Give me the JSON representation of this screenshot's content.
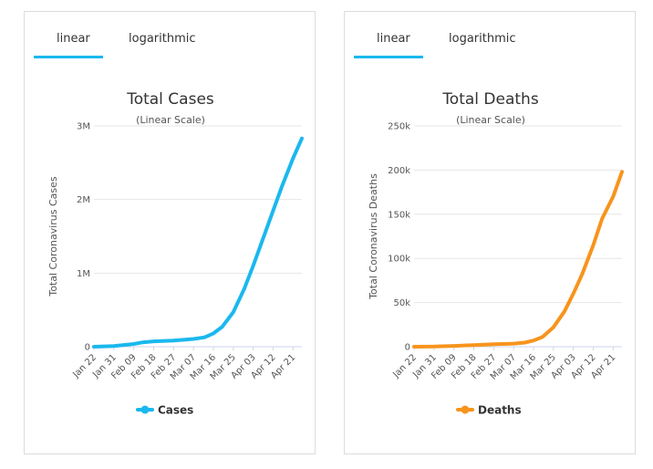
{
  "panels": [
    {
      "tabs": {
        "linear": "linear",
        "logarithmic": "logarithmic"
      },
      "chart_data": {
        "type": "line",
        "title": "Total Cases",
        "subtitle": "(Linear Scale)",
        "ylabel": "Total Coronavirus Cases",
        "xlabel": "",
        "categories": [
          "Jan 22",
          "Jan 31",
          "Feb 09",
          "Feb 18",
          "Feb 27",
          "Mar 07",
          "Mar 16",
          "Mar 25",
          "Apr 03",
          "Apr 12",
          "Apr 21"
        ],
        "x": [
          "Jan 22",
          "Jan 31",
          "Feb 09",
          "Feb 13",
          "Feb 18",
          "Feb 27",
          "Mar 07",
          "Mar 12",
          "Mar 16",
          "Mar 20",
          "Mar 25",
          "Mar 30",
          "Apr 03",
          "Apr 07",
          "Apr 12",
          "Apr 16",
          "Apr 21",
          "Apr 25"
        ],
        "series": [
          {
            "name": "Cases",
            "color": "#1ab8ee",
            "values": [
              555,
              9800,
              37500,
              60000,
              73000,
              84000,
              105000,
              128000,
              181000,
              272000,
              470000,
              790000,
              1100000,
              1430000,
              1850000,
              2180000,
              2560000,
              2830000
            ]
          }
        ],
        "yticks": [
          "0",
          "1M",
          "2M",
          "3M"
        ],
        "ylim": [
          0,
          3000000
        ],
        "grid": true,
        "legend": "bottom"
      }
    },
    {
      "tabs": {
        "linear": "linear",
        "logarithmic": "logarithmic"
      },
      "chart_data": {
        "type": "line",
        "title": "Total Deaths",
        "subtitle": "(Linear Scale)",
        "ylabel": "Total Coronavirus Deaths",
        "xlabel": "",
        "categories": [
          "Jan 22",
          "Jan 31",
          "Feb 09",
          "Feb 18",
          "Feb 27",
          "Mar 07",
          "Mar 16",
          "Mar 25",
          "Apr 03",
          "Apr 12",
          "Apr 21"
        ],
        "x": [
          "Jan 22",
          "Jan 31",
          "Feb 09",
          "Feb 18",
          "Feb 27",
          "Mar 07",
          "Mar 12",
          "Mar 16",
          "Mar 20",
          "Mar 25",
          "Mar 30",
          "Apr 03",
          "Apr 07",
          "Apr 12",
          "Apr 16",
          "Apr 21",
          "Apr 25"
        ],
        "series": [
          {
            "name": "Deaths",
            "color": "#f7941d",
            "values": [
              17,
              213,
              900,
              1900,
              2800,
              3500,
              4600,
              7000,
              11000,
              22000,
              40000,
              60000,
              82000,
              115000,
              145000,
              170000,
              198000
            ]
          }
        ],
        "yticks": [
          "0",
          "50k",
          "100k",
          "150k",
          "200k",
          "250k"
        ],
        "ylim": [
          0,
          250000
        ],
        "grid": true,
        "legend": "bottom"
      }
    }
  ]
}
